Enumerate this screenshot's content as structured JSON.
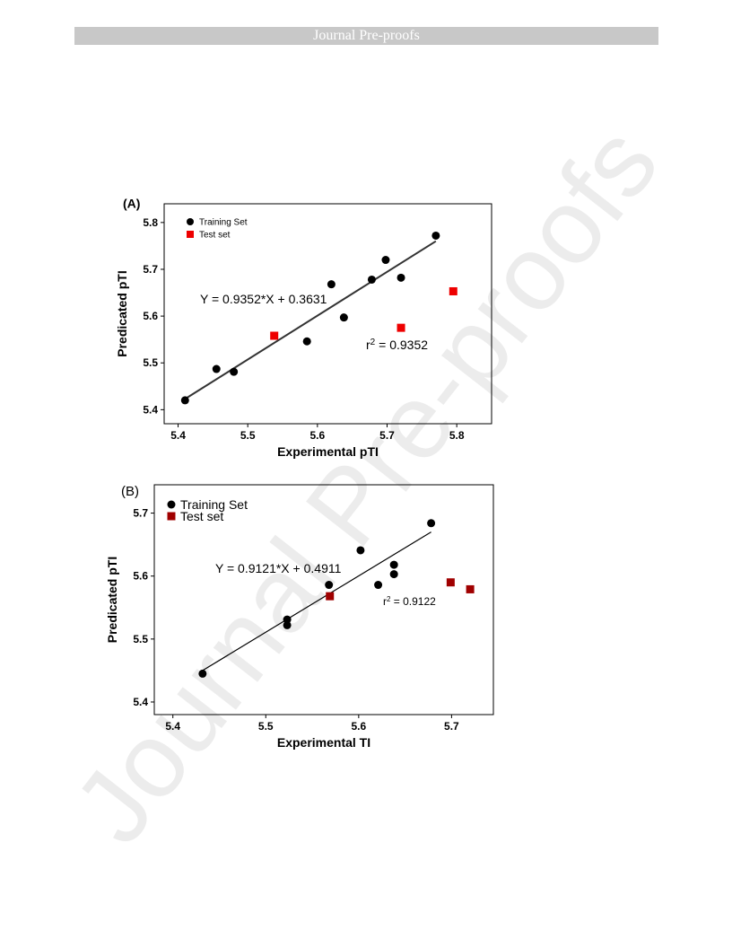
{
  "header": {
    "banner": "Journal Pre-proofs"
  },
  "watermark": "Journal Pre-proofs",
  "chart_data": [
    {
      "type": "scatter",
      "panel_label": "(A)",
      "xlabel": "Experimental pTI",
      "ylabel": "Predicated pTI",
      "xlim": [
        5.38,
        5.85
      ],
      "ylim": [
        5.37,
        5.84
      ],
      "xticks": [
        5.4,
        5.5,
        5.6,
        5.7,
        5.8
      ],
      "yticks": [
        5.4,
        5.5,
        5.6,
        5.7,
        5.8
      ],
      "grid": false,
      "legend_position": "top-left",
      "series": [
        {
          "name": "Training Set",
          "marker": "circle",
          "color": "#000000",
          "x": [
            5.41,
            5.455,
            5.48,
            5.585,
            5.62,
            5.638,
            5.678,
            5.698,
            5.72,
            5.77
          ],
          "y": [
            5.42,
            5.487,
            5.481,
            5.546,
            5.668,
            5.597,
            5.678,
            5.72,
            5.682,
            5.772
          ]
        },
        {
          "name": "Test set",
          "marker": "square",
          "color": "#ee0000",
          "x": [
            5.538,
            5.72,
            5.795
          ],
          "y": [
            5.558,
            5.575,
            5.653
          ]
        }
      ],
      "fit_line": {
        "x": [
          5.41,
          5.77
        ],
        "y": [
          5.423,
          5.76
        ],
        "color": "#333333"
      },
      "equation": "Y = 0.9352*X + 0.3631",
      "r2_label": "r",
      "r2_sup": "2",
      "r2_value": " = 0.9352"
    },
    {
      "type": "scatter",
      "panel_label": "(B)",
      "xlabel": "Experimental TI",
      "ylabel": "Predicated pTI",
      "xlim": [
        5.38,
        5.745
      ],
      "ylim": [
        5.38,
        5.745
      ],
      "xticks": [
        5.4,
        5.5,
        5.6,
        5.7
      ],
      "yticks": [
        5.4,
        5.5,
        5.6,
        5.7
      ],
      "grid": false,
      "legend_position": "top-left",
      "series": [
        {
          "name": "Training Set",
          "marker": "circle",
          "color": "#000000",
          "x": [
            5.432,
            5.523,
            5.523,
            5.568,
            5.602,
            5.621,
            5.638,
            5.638,
            5.678
          ],
          "y": [
            5.445,
            5.531,
            5.522,
            5.586,
            5.641,
            5.586,
            5.618,
            5.603,
            5.684
          ]
        },
        {
          "name": "Test set",
          "marker": "square",
          "color": "#a00000",
          "x": [
            5.569,
            5.699,
            5.72
          ],
          "y": [
            5.568,
            5.59,
            5.579
          ]
        }
      ],
      "fit_line": {
        "x": [
          5.432,
          5.678
        ],
        "y": [
          5.45,
          5.67
        ],
        "color": "#000000"
      },
      "equation": "Y = 0.9121*X + 0.4911",
      "r2_label": "r",
      "r2_sup": "2",
      "r2_value": " = 0.9122"
    }
  ]
}
